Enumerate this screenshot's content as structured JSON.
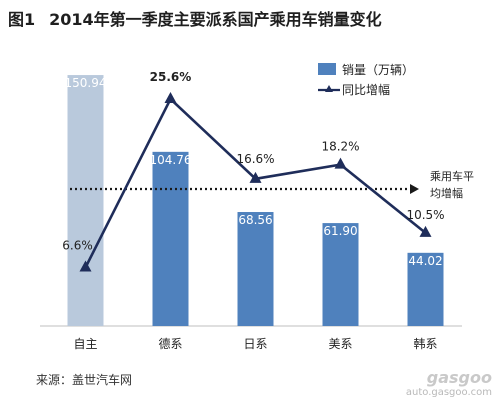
{
  "header": {
    "fig_label": "图1",
    "title": "2014年第一季度主要派系国产乘用车销量变化"
  },
  "chart_data": {
    "type": "bar",
    "categories": [
      "自主",
      "德系",
      "日系",
      "美系",
      "韩系"
    ],
    "series": [
      {
        "name": "销量（万辆）",
        "kind": "bar",
        "values": [
          150.94,
          104.76,
          68.56,
          61.9,
          44.02
        ],
        "labels": [
          "150.94",
          "104.76",
          "68.56",
          "61.90",
          "44.02"
        ]
      },
      {
        "name": "同比增幅",
        "kind": "line",
        "values": [
          6.6,
          25.6,
          16.6,
          18.2,
          10.5
        ],
        "labels": [
          "6.6%",
          "25.6%",
          "16.6%",
          "18.2%",
          "10.5%"
        ]
      }
    ],
    "reference_line": {
      "label": "乘用车平均增幅"
    },
    "ylim_bar": [
      0,
      160
    ],
    "ylim_line": [
      0,
      30
    ],
    "colors": {
      "bar": "#4f81bd",
      "bar_highlight": "#b9c9dc",
      "line": "#1f2d5a",
      "label": "#ffffff",
      "ref": "#1a1a1a"
    },
    "legend_position": "top-right",
    "grid": false
  },
  "footer": {
    "source": "来源：盖世汽车网"
  },
  "watermark": {
    "brand": "gasgoo",
    "url": "auto.gasgoo.com"
  }
}
